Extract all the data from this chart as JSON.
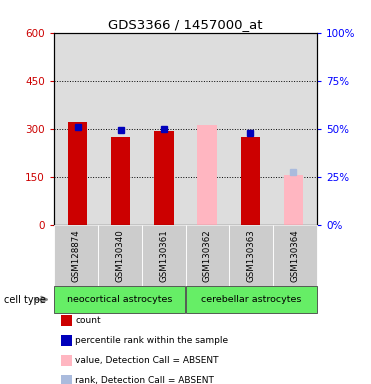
{
  "title": "GDS3366 / 1457000_at",
  "samples": [
    "GSM128874",
    "GSM130340",
    "GSM130361",
    "GSM130362",
    "GSM130363",
    "GSM130364"
  ],
  "red_bars": [
    322,
    275,
    292,
    null,
    275,
    null
  ],
  "pink_bars": [
    null,
    null,
    null,
    310,
    null,
    155
  ],
  "blue_dots": [
    305,
    295,
    300,
    null,
    285,
    null
  ],
  "light_blue_dots": [
    null,
    null,
    null,
    null,
    null,
    165
  ],
  "ylim_left": [
    0,
    600
  ],
  "ylim_right": [
    0,
    100
  ],
  "yticks_left": [
    0,
    150,
    300,
    450,
    600
  ],
  "yticks_right": [
    0,
    25,
    50,
    75,
    100
  ],
  "yticklabels_left": [
    "0",
    "150",
    "300",
    "450",
    "600"
  ],
  "yticklabels_right": [
    "0%",
    "25%",
    "50%",
    "75%",
    "100%"
  ],
  "bar_width": 0.45,
  "red_color": "#CC0000",
  "pink_color": "#FFB6C1",
  "blue_color": "#0000BB",
  "light_blue_color": "#AABBDD",
  "bg_plot": "#DDDDDD",
  "green_color": "#66EE66",
  "gray_color": "#CCCCCC",
  "cell_type_label": "cell type",
  "neo_label": "neocortical astrocytes",
  "cer_label": "cerebellar astrocytes",
  "legend_labels": [
    "count",
    "percentile rank within the sample",
    "value, Detection Call = ABSENT",
    "rank, Detection Call = ABSENT"
  ],
  "legend_colors": [
    "#CC0000",
    "#0000BB",
    "#FFB6C1",
    "#AABBDD"
  ]
}
